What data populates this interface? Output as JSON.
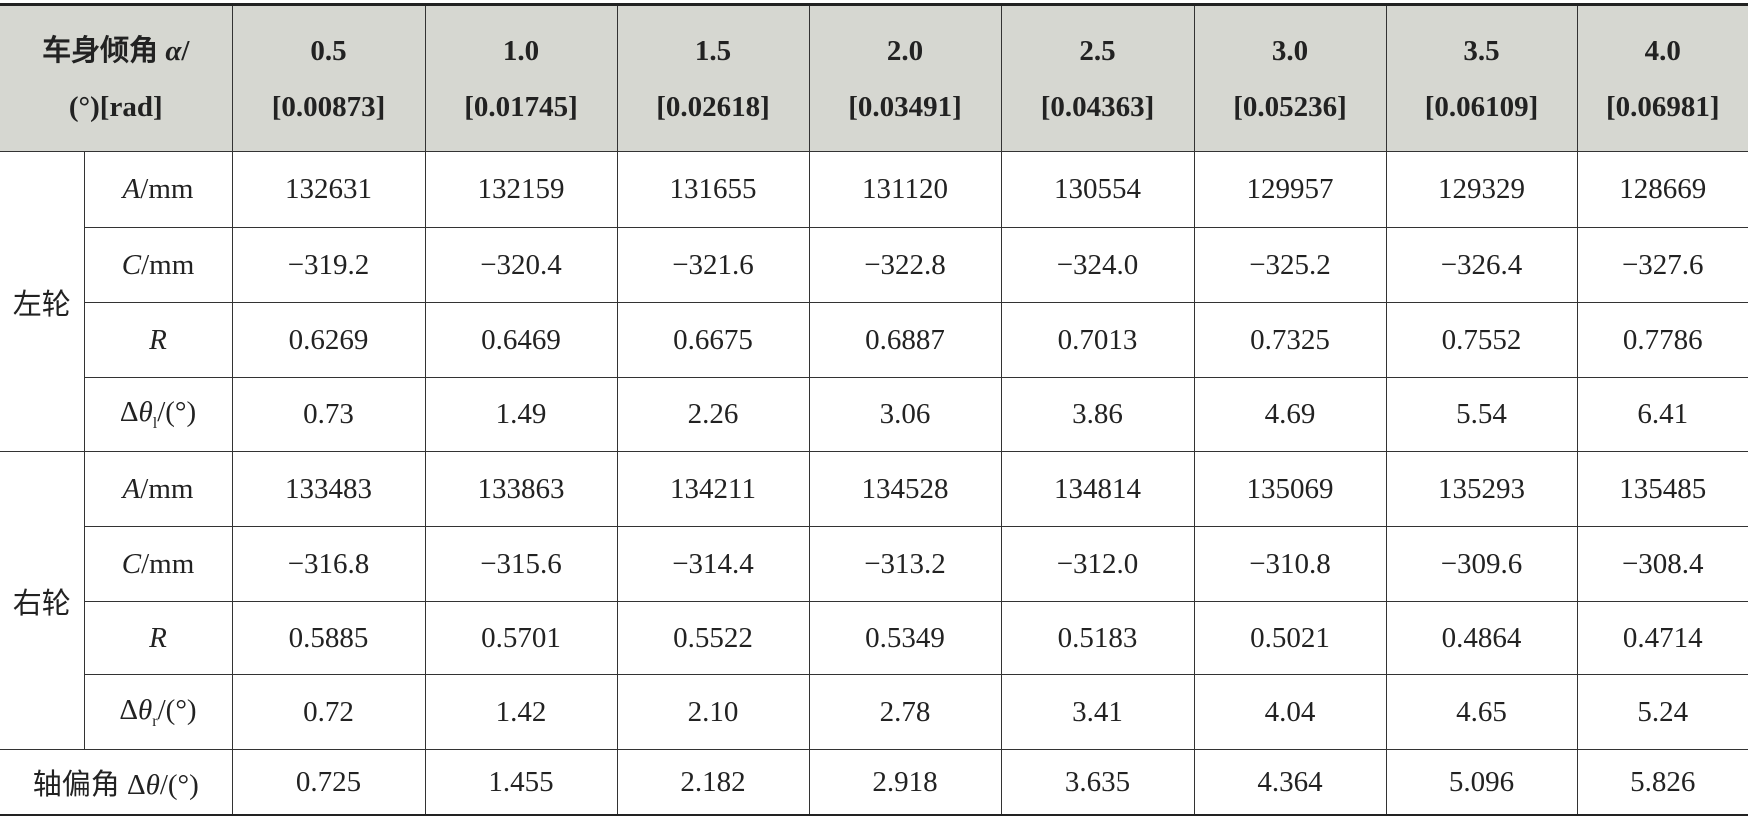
{
  "header": {
    "corner": {
      "line1": {
        "text": "车身倾角 ",
        "sym": "α",
        "unit": "/"
      },
      "line2": "(°)[rad]"
    },
    "columns": [
      {
        "deg": "0.5",
        "rad": "[0.00873]"
      },
      {
        "deg": "1.0",
        "rad": "[0.01745]"
      },
      {
        "deg": "1.5",
        "rad": "[0.02618]"
      },
      {
        "deg": "2.0",
        "rad": "[0.03491]"
      },
      {
        "deg": "2.5",
        "rad": "[0.04363]"
      },
      {
        "deg": "3.0",
        "rad": "[0.05236]"
      },
      {
        "deg": "3.5",
        "rad": "[0.06109]"
      },
      {
        "deg": "4.0",
        "rad": "[0.06981]"
      }
    ]
  },
  "groups": [
    {
      "label": "左轮",
      "rows": [
        {
          "label": {
            "sym": "A",
            "unit": "/mm"
          },
          "cells": [
            "132631",
            "132159",
            "131655",
            "131120",
            "130554",
            "129957",
            "129329",
            "128669"
          ]
        },
        {
          "label": {
            "sym": "C",
            "unit": "/mm"
          },
          "cells": [
            "−319.2",
            "−320.4",
            "−321.6",
            "−322.8",
            "−324.0",
            "−325.2",
            "−326.4",
            "−327.6"
          ]
        },
        {
          "label": {
            "sym": "R"
          },
          "cells": [
            "0.6269",
            "0.6469",
            "0.6675",
            "0.6887",
            "0.7013",
            "0.7325",
            "0.7552",
            "0.7786"
          ]
        },
        {
          "label": {
            "pre": "Δ",
            "sym": "θ",
            "sub": "l",
            "unit": "/(°)"
          },
          "cells": [
            "0.73",
            "1.49",
            "2.26",
            "3.06",
            "3.86",
            "4.69",
            "5.54",
            "6.41"
          ]
        }
      ]
    },
    {
      "label": "右轮",
      "rows": [
        {
          "label": {
            "sym": "A",
            "unit": "/mm"
          },
          "cells": [
            "133483",
            "133863",
            "134211",
            "134528",
            "134814",
            "135069",
            "135293",
            "135485"
          ]
        },
        {
          "label": {
            "sym": "C",
            "unit": "/mm"
          },
          "cells": [
            "−316.8",
            "−315.6",
            "−314.4",
            "−313.2",
            "−312.0",
            "−310.8",
            "−309.6",
            "−308.4"
          ]
        },
        {
          "label": {
            "sym": "R"
          },
          "cells": [
            "0.5885",
            "0.5701",
            "0.5522",
            "0.5349",
            "0.5183",
            "0.5021",
            "0.4864",
            "0.4714"
          ]
        },
        {
          "label": {
            "pre": "Δ",
            "sym": "θ",
            "sub": "r",
            "unit": "/(°)"
          },
          "cells": [
            "0.72",
            "1.42",
            "2.10",
            "2.78",
            "3.41",
            "4.04",
            "4.65",
            "5.24"
          ]
        }
      ]
    }
  ],
  "footer": {
    "label": {
      "pre": "轴偏角 Δ",
      "sym": "θ",
      "unit": "/(°)"
    },
    "cells": [
      "0.725",
      "1.455",
      "2.182",
      "2.918",
      "3.635",
      "4.364",
      "5.096",
      "5.826"
    ]
  }
}
